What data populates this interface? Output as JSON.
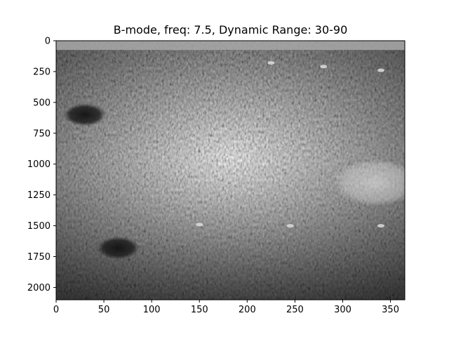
{
  "chart_data": {
    "type": "heatmap",
    "title": "B-mode, freq: 7.5, Dynamic Range: 30-90",
    "xlabel": "",
    "ylabel": "",
    "colormap": "gray",
    "xlim": [
      0,
      365
    ],
    "ylim": [
      2100,
      0
    ],
    "x_axis_inverted": false,
    "y_axis_inverted": true,
    "xticks": [
      0,
      50,
      100,
      150,
      200,
      250,
      300,
      350
    ],
    "yticks": [
      0,
      250,
      500,
      750,
      1000,
      1250,
      1500,
      1750,
      2000
    ],
    "grid": false,
    "image_description": "grayscale ultrasound speckle pattern",
    "features": [
      {
        "kind": "bright-band",
        "x": [
          0,
          365
        ],
        "y": [
          0,
          75
        ]
      },
      {
        "kind": "hypoechoic-cyst",
        "x": 30,
        "y": 600
      },
      {
        "kind": "hypoechoic-cyst",
        "x": 65,
        "y": 1680
      },
      {
        "kind": "hyperechoic-region",
        "x": 335,
        "y": 1150
      },
      {
        "kind": "bright-point",
        "x": 150,
        "y": 1490
      },
      {
        "kind": "bright-point",
        "x": 245,
        "y": 1500
      },
      {
        "kind": "bright-point",
        "x": 340,
        "y": 1500
      },
      {
        "kind": "bright-point",
        "x": 225,
        "y": 180
      },
      {
        "kind": "bright-point",
        "x": 280,
        "y": 210
      },
      {
        "kind": "bright-point",
        "x": 340,
        "y": 240
      }
    ]
  }
}
